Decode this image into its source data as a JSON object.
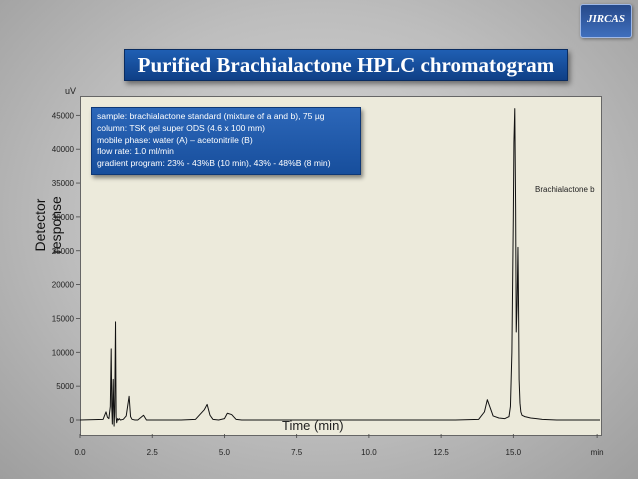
{
  "title": "Purified Brachialactone HPLC chromatogram",
  "logo_text": "JIRCAS",
  "chart_data": {
    "type": "line",
    "title": "Purified Brachialactone HPLC chromatogram",
    "ylabel": "Detector response",
    "yunit": "uV",
    "xlabel": "Time (min)",
    "xunit": "min",
    "xlim": [
      0,
      18.0
    ],
    "ylim": [
      -2000,
      48000
    ],
    "xticks": [
      "0.0",
      "2.5",
      "5.0",
      "7.5",
      "10.0",
      "12.5",
      "15.0",
      "min"
    ],
    "yticks": [
      "0",
      "5000",
      "10000",
      "15000",
      "20000",
      "25000",
      "30000",
      "35000",
      "40000",
      "45000"
    ],
    "grid": false,
    "annotations": [
      "Brachialactone b"
    ],
    "info": [
      "sample: brachialactone standard (mixture of a and b), 75 µg",
      "column: TSK gel super ODS (4.6 x 100 mm)",
      "mobile phase: water (A) – acetonitrile (B)",
      "flow rate: 1.0 ml/min",
      "gradient program: 23% - 43%B (10 min), 43% - 48%B (8 min)"
    ],
    "series": [
      {
        "color": "#111111",
        "x": [
          0.0,
          0.8,
          0.9,
          0.95,
          1.0,
          1.05,
          1.08,
          1.1,
          1.12,
          1.15,
          1.18,
          1.2,
          1.23,
          1.25,
          1.27,
          1.3,
          1.33,
          1.36,
          1.4,
          1.5,
          1.6,
          1.7,
          1.75,
          1.8,
          1.9,
          2.0,
          2.2,
          2.3,
          2.5,
          3.0,
          3.5,
          4.0,
          4.3,
          4.4,
          4.5,
          4.6,
          4.8,
          5.0,
          5.1,
          5.25,
          5.4,
          5.6,
          6.0,
          7.0,
          8.0,
          9.0,
          10.0,
          11.0,
          12.0,
          13.0,
          13.8,
          14.0,
          14.1,
          14.2,
          14.3,
          14.5,
          14.7,
          14.85,
          14.9,
          14.95,
          15.0,
          15.02,
          15.05,
          15.08,
          15.1,
          15.13,
          15.16,
          15.18,
          15.2,
          15.23,
          15.26,
          15.3,
          15.35,
          15.4,
          15.6,
          15.8,
          16.0,
          16.5,
          17.0,
          17.5,
          18.0
        ],
        "y": [
          0,
          100,
          1200,
          400,
          200,
          2000,
          10500,
          2000,
          -600,
          6000,
          -900,
          1200,
          14500,
          500,
          -400,
          200,
          0,
          200,
          0,
          100,
          600,
          3500,
          500,
          100,
          0,
          0,
          700,
          0,
          0,
          0,
          0,
          100,
          1500,
          2300,
          700,
          100,
          0,
          200,
          1000,
          800,
          100,
          0,
          0,
          0,
          0,
          0,
          0,
          0,
          0,
          0,
          100,
          1200,
          3000,
          1800,
          600,
          300,
          200,
          500,
          2000,
          10000,
          30000,
          41000,
          46000,
          31000,
          13000,
          17000,
          25500,
          17000,
          6000,
          2500,
          1200,
          700,
          600,
          500,
          300,
          200,
          100,
          0,
          0,
          0,
          0
        ]
      }
    ]
  }
}
